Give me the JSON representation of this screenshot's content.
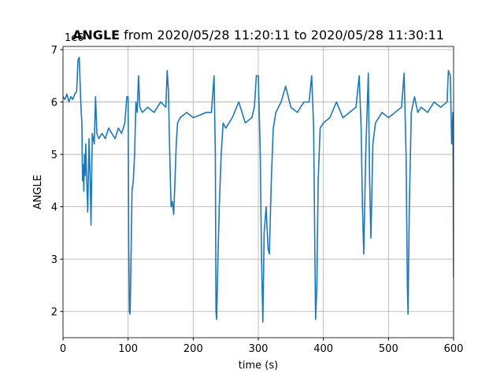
{
  "chart_data": {
    "type": "line",
    "title": "ANGLE",
    "title_suffix": "from 2020/05/28 11:20:11 to 2020/05/28 11:30:11",
    "x_label": "time (s)",
    "y_label": "ANGLE",
    "offset_text": "1e6",
    "xlim": [
      0,
      600
    ],
    "ylim": [
      1.5,
      7.06
    ],
    "xticks": [
      0,
      100,
      200,
      300,
      400,
      500,
      600
    ],
    "yticks": [
      2,
      3,
      4,
      5,
      6,
      7
    ],
    "grid": true,
    "series": [
      {
        "name": "ANGLE",
        "color": "#1f77b4",
        "x": [
          0,
          3,
          6,
          9,
          12,
          15,
          18,
          21,
          23,
          25,
          27,
          28,
          29,
          30,
          31,
          32,
          33,
          34,
          35,
          36,
          38,
          40,
          42,
          43,
          45,
          48,
          50,
          52,
          55,
          60,
          65,
          70,
          75,
          80,
          85,
          90,
          95,
          98,
          100,
          101,
          102,
          103,
          104,
          106,
          108,
          110,
          112,
          114,
          116,
          118,
          122,
          130,
          140,
          150,
          158,
          160,
          162,
          164,
          166,
          168,
          170,
          172,
          174,
          176,
          180,
          190,
          200,
          210,
          220,
          228,
          232,
          234,
          235,
          236,
          238,
          240,
          243,
          246,
          250,
          260,
          270,
          280,
          290,
          294,
          297,
          300,
          303,
          305,
          307,
          309,
          312,
          315,
          317,
          320,
          323,
          327,
          335,
          342,
          350,
          360,
          370,
          378,
          382,
          385,
          387,
          388,
          390,
          392,
          395,
          400,
          410,
          420,
          430,
          440,
          450,
          455,
          458,
          460,
          462,
          465,
          469,
          471,
          473,
          476,
          480,
          490,
          500,
          510,
          520,
          524,
          527,
          529,
          530,
          532,
          535,
          540,
          545,
          550,
          560,
          570,
          580,
          590,
          592,
          595,
          597,
          599,
          600
        ],
        "values": [
          6.1,
          6.05,
          6.15,
          6.0,
          6.1,
          6.05,
          6.15,
          6.2,
          6.8,
          6.85,
          6.1,
          5.8,
          5.6,
          4.5,
          4.8,
          4.3,
          5.0,
          4.6,
          5.2,
          4.7,
          3.9,
          5.3,
          4.4,
          3.65,
          5.4,
          5.2,
          6.1,
          5.4,
          5.3,
          5.4,
          5.3,
          5.5,
          5.4,
          5.3,
          5.5,
          5.4,
          5.6,
          6.1,
          6.1,
          3.2,
          2.0,
          1.95,
          2.6,
          4.3,
          4.5,
          5.0,
          6.0,
          5.8,
          6.5,
          5.9,
          5.8,
          5.9,
          5.8,
          6.0,
          5.9,
          6.6,
          6.2,
          5.0,
          4.0,
          4.1,
          3.85,
          4.5,
          5.2,
          5.6,
          5.7,
          5.8,
          5.7,
          5.75,
          5.8,
          5.8,
          6.5,
          5.0,
          2.0,
          1.85,
          3.0,
          4.0,
          5.0,
          5.6,
          5.5,
          5.7,
          6.0,
          5.6,
          5.7,
          5.9,
          6.5,
          6.5,
          5.0,
          3.0,
          1.8,
          3.5,
          4.0,
          3.2,
          3.1,
          4.5,
          5.5,
          5.8,
          6.0,
          6.3,
          5.9,
          5.8,
          6.0,
          6.0,
          6.5,
          5.5,
          3.0,
          1.85,
          2.5,
          4.5,
          5.5,
          5.6,
          5.7,
          6.0,
          5.7,
          5.8,
          5.9,
          6.5,
          5.5,
          4.0,
          3.1,
          5.0,
          6.55,
          4.5,
          3.4,
          5.2,
          5.6,
          5.8,
          5.7,
          5.8,
          5.9,
          6.55,
          5.0,
          2.5,
          1.95,
          4.0,
          5.8,
          6.1,
          5.8,
          5.9,
          5.8,
          6.0,
          5.9,
          6.0,
          6.6,
          6.5,
          5.2,
          5.8,
          2.65
        ]
      }
    ]
  }
}
